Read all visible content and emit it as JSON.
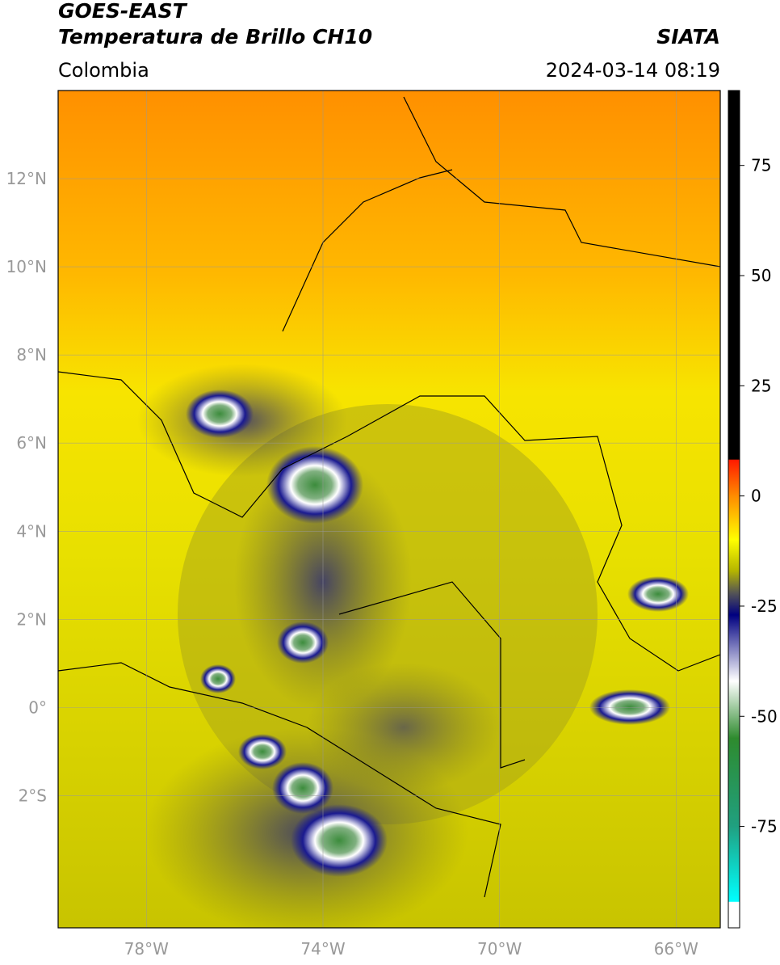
{
  "header": {
    "title": "GOES-EAST",
    "subtitle": "Temperatura de Brillo CH10",
    "source": "SIATA",
    "region": "Colombia",
    "datetime": "2024-03-14 08:19"
  },
  "map": {
    "xlim": [
      -80,
      -65
    ],
    "ylim": [
      -5,
      14
    ],
    "xticks": [
      {
        "value": -78,
        "label": "78°W"
      },
      {
        "value": -74,
        "label": "74°W"
      },
      {
        "value": -70,
        "label": "70°W"
      },
      {
        "value": -66,
        "label": "66°W"
      }
    ],
    "yticks": [
      {
        "value": 12,
        "label": "12°N"
      },
      {
        "value": 10,
        "label": "10°N"
      },
      {
        "value": 8,
        "label": "8°N"
      },
      {
        "value": 6,
        "label": "6°N"
      },
      {
        "value": 4,
        "label": "4°N"
      },
      {
        "value": 2,
        "label": "2°N"
      },
      {
        "value": 0,
        "label": "0°"
      },
      {
        "value": -2,
        "label": "2°S"
      }
    ],
    "grid": true
  },
  "colorbar": {
    "range": [
      -98,
      92
    ],
    "ticks": [
      75,
      50,
      25,
      0,
      -25,
      -50,
      -75
    ],
    "stops": [
      {
        "value": 92,
        "color": "#000000"
      },
      {
        "value": 8.3,
        "color": "#000000"
      },
      {
        "value": 8.2,
        "color": "#ff1a00"
      },
      {
        "value": 0,
        "color": "#ff8c00"
      },
      {
        "value": -10,
        "color": "#ffff00"
      },
      {
        "value": -17,
        "color": "#b4b400"
      },
      {
        "value": -22,
        "color": "#555555"
      },
      {
        "value": -27,
        "color": "#000080"
      },
      {
        "value": -42,
        "color": "#ffffff"
      },
      {
        "value": -55,
        "color": "#2e8b2e"
      },
      {
        "value": -75,
        "color": "#20a080"
      },
      {
        "value": -92,
        "color": "#00ffff"
      },
      {
        "value": -92.2,
        "color": "#ffffff"
      },
      {
        "value": -98,
        "color": "#ffffff"
      }
    ]
  }
}
